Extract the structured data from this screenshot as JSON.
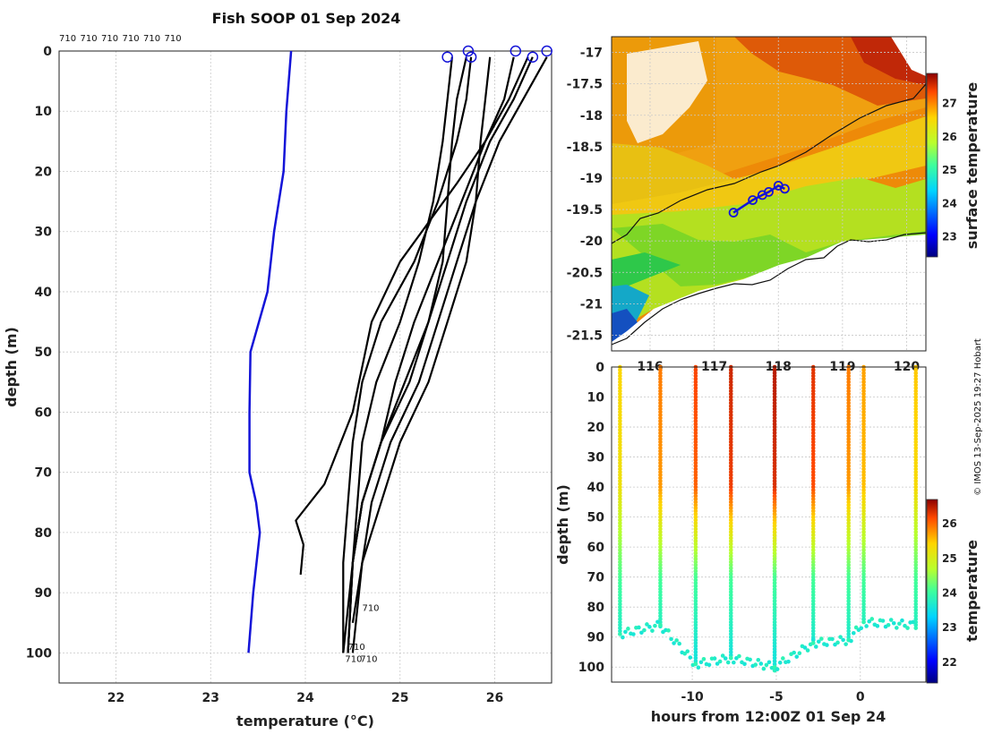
{
  "title": "Fish SOOP 01 Sep 2024",
  "watermark": "© IMOS 13-Sep-2025 19:27 Hobart",
  "chart_data": [
    {
      "type": "line",
      "name": "temperature-profiles",
      "xlabel": "temperature (°C)",
      "ylabel": "depth (m)",
      "xlim": [
        21.4,
        26.6
      ],
      "ylim": [
        0,
        105
      ],
      "xticks": [
        22,
        23,
        24,
        25,
        26
      ],
      "yticks": [
        0,
        10,
        20,
        30,
        40,
        50,
        60,
        70,
        80,
        90,
        100
      ],
      "grid": true,
      "top_labels": [
        "710",
        "710",
        "710",
        "710",
        "710",
        "710"
      ],
      "end_labels": [
        "710",
        "710",
        "710",
        "710"
      ],
      "climatology": {
        "color": "#1414d8",
        "depth": [
          0,
          10,
          20,
          30,
          40,
          50,
          60,
          70,
          75,
          80,
          90,
          100
        ],
        "temp": [
          23.85,
          23.8,
          23.77,
          23.67,
          23.6,
          23.42,
          23.41,
          23.41,
          23.48,
          23.52,
          23.45,
          23.4
        ]
      },
      "profiles": [
        {
          "temp": [
            25.55,
            25.5,
            25.45,
            25.35,
            25.2,
            25.0,
            24.75,
            24.6,
            24.55,
            24.5,
            24.45
          ],
          "depth": [
            1,
            8,
            15,
            25,
            35,
            45,
            55,
            65,
            75,
            85,
            100
          ]
        },
        {
          "temp": [
            25.7,
            25.6,
            25.55,
            25.5,
            25.45,
            25.3,
            25.1,
            24.8,
            24.6,
            24.5,
            24.45
          ],
          "depth": [
            1,
            8,
            15,
            25,
            35,
            45,
            55,
            65,
            75,
            85,
            100
          ]
        },
        {
          "temp": [
            25.75,
            25.7,
            25.6,
            25.4,
            25.15,
            24.8,
            24.6,
            24.5,
            24.45,
            24.4,
            24.4
          ],
          "depth": [
            1,
            8,
            15,
            25,
            35,
            45,
            55,
            65,
            75,
            85,
            100
          ]
        },
        {
          "temp": [
            26.2,
            26.1,
            25.9,
            25.65,
            25.4,
            25.15,
            24.95,
            24.8,
            24.6,
            24.5,
            24.45
          ],
          "depth": [
            1,
            8,
            15,
            25,
            35,
            45,
            55,
            65,
            75,
            85,
            100
          ]
        },
        {
          "temp": [
            26.4,
            26.2,
            25.95,
            25.7,
            25.5,
            25.3,
            25.05,
            24.8,
            24.6,
            24.5,
            24.4
          ],
          "depth": [
            1,
            8,
            15,
            25,
            35,
            45,
            55,
            65,
            75,
            85,
            100
          ]
        },
        {
          "temp": [
            26.55,
            26.3,
            26.05,
            25.8,
            25.6,
            25.4,
            25.2,
            24.9,
            24.7,
            24.6,
            24.5
          ],
          "depth": [
            1,
            8,
            15,
            25,
            35,
            45,
            55,
            65,
            75,
            85,
            100
          ]
        },
        {
          "temp": [
            26.35,
            26.15,
            25.9,
            25.6,
            25.0,
            24.7,
            24.5,
            24.2,
            23.9,
            23.98,
            23.95
          ],
          "depth": [
            1,
            8,
            15,
            22,
            35,
            45,
            60,
            72,
            78,
            82,
            87
          ]
        },
        {
          "temp": [
            25.95,
            25.9,
            25.85,
            25.8,
            25.7,
            25.5,
            25.3,
            25.0,
            24.8,
            24.6,
            24.5
          ],
          "depth": [
            1,
            8,
            15,
            25,
            35,
            45,
            55,
            65,
            75,
            85,
            95
          ]
        }
      ],
      "start_markers_temp": [
        25.5,
        25.72,
        25.75,
        26.22,
        26.4,
        26.55
      ]
    },
    {
      "type": "heatmap",
      "name": "surface-temperature-map",
      "colorbar_label": "surface temperature",
      "xlim": [
        115.4,
        120.3
      ],
      "ylim": [
        -21.75,
        -16.75
      ],
      "xticks": [
        116,
        117,
        118,
        119,
        120
      ],
      "yticks": [
        -17,
        -17.5,
        -18,
        -18.5,
        -19,
        -19.5,
        -20,
        -20.5,
        -21,
        -21.5
      ],
      "colorbar_ticks": [
        23,
        24,
        25,
        26,
        27
      ],
      "colorbar_range": [
        22.4,
        27.9
      ],
      "track_lon": [
        117.3,
        117.6,
        117.75,
        117.85,
        118.0,
        118.1
      ],
      "track_lat": [
        -19.55,
        -19.35,
        -19.27,
        -19.22,
        -19.12,
        -19.17
      ]
    },
    {
      "type": "scatter",
      "name": "temperature-section",
      "xlabel": "hours from 12:00Z 01 Sep 24",
      "ylabel": "depth (m)",
      "colorbar_label": "temperature",
      "xlim": [
        -14.8,
        3.9
      ],
      "ylim": [
        0,
        105
      ],
      "xticks": [
        -10,
        -5,
        0
      ],
      "yticks": [
        0,
        10,
        20,
        30,
        40,
        50,
        60,
        70,
        80,
        90,
        100
      ],
      "colorbar_ticks": [
        22,
        23,
        24,
        25,
        26
      ],
      "colorbar_range": [
        21.4,
        26.7
      ],
      "casts": [
        {
          "hour": -14.3,
          "bottom": 89,
          "surface": 25.4
        },
        {
          "hour": -11.9,
          "bottom": 86,
          "surface": 25.9
        },
        {
          "hour": -9.8,
          "bottom": 99,
          "surface": 26.2
        },
        {
          "hour": -7.7,
          "bottom": 97,
          "surface": 26.4
        },
        {
          "hour": -5.1,
          "bottom": 100,
          "surface": 26.5
        },
        {
          "hour": -2.8,
          "bottom": 92,
          "surface": 26.3
        },
        {
          "hour": -0.7,
          "bottom": 91,
          "surface": 25.9
        },
        {
          "hour": 0.2,
          "bottom": 85,
          "surface": 25.7
        },
        {
          "hour": 3.3,
          "bottom": 86,
          "surface": 25.5
        }
      ]
    }
  ]
}
